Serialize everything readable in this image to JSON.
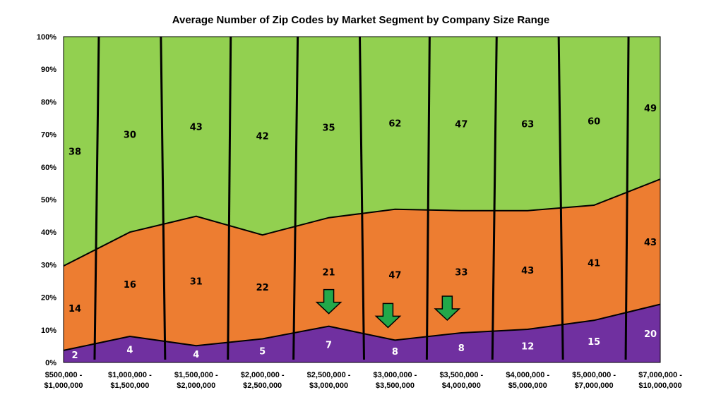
{
  "chart_data": {
    "type": "area",
    "stacked": "percent",
    "title": "Average Number of Zip Codes by Market Segment by Company Size Range",
    "xlabel": "",
    "ylabel": "",
    "ylim": [
      0,
      100
    ],
    "y_ticks": [
      "0%",
      "10%",
      "20%",
      "30%",
      "40%",
      "50%",
      "60%",
      "70%",
      "80%",
      "90%",
      "100%"
    ],
    "categories": [
      [
        "$500,000 -",
        "$1,000,000"
      ],
      [
        "$1,000,000 -",
        "$1,500,000"
      ],
      [
        "$1,500,000 -",
        "$2,000,000"
      ],
      [
        "$2,000,000 -",
        "$2,500,000"
      ],
      [
        "$2,500,000 -",
        "$3,000,000"
      ],
      [
        "$3,000,000 -",
        "$3,500,000"
      ],
      [
        "$3,500,000 -",
        "$4,000,000"
      ],
      [
        "$4,000,000 -",
        "$5,000,000"
      ],
      [
        "$5,000,000 -",
        "$7,000,000"
      ],
      [
        "$7,000,000 -",
        "$10,000,000"
      ]
    ],
    "series": [
      {
        "values": [
          2,
          4,
          4,
          5,
          7,
          8,
          8,
          12,
          15,
          20
        ],
        "color": "#7030A0",
        "label_color": "#ffffff"
      },
      {
        "values": [
          14,
          16,
          31,
          22,
          21,
          47,
          33,
          43,
          41,
          43
        ],
        "color": "#ED7D31",
        "label_color": "#000000"
      },
      {
        "values": [
          38,
          30,
          43,
          42,
          35,
          62,
          47,
          63,
          60,
          49
        ],
        "color": "#92D050",
        "label_color": "#000000"
      }
    ],
    "annotations": [
      {
        "type": "down-arrow",
        "category_index": 4,
        "color": "#22A84A"
      },
      {
        "type": "down-arrow",
        "category_index": 5,
        "color": "#22A84A"
      },
      {
        "type": "down-arrow",
        "category_index": 6,
        "color": "#22A84A"
      }
    ],
    "grid": false,
    "legend": "none"
  }
}
